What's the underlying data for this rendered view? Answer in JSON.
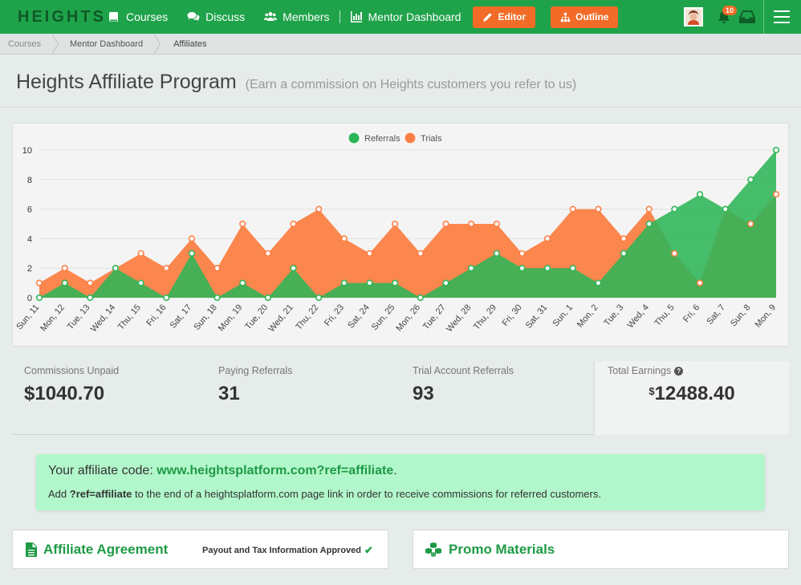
{
  "nav": {
    "brand": "HEIGHTS",
    "items": [
      {
        "label": "Courses",
        "icon": "book-icon"
      },
      {
        "label": "Discuss",
        "icon": "chat-bubbles-icon"
      },
      {
        "label": "Members",
        "icon": "users-icon"
      },
      {
        "label": "Mentor Dashboard",
        "icon": "bar-chart-icon"
      }
    ],
    "editor_label": "Editor",
    "outline_label": "Outline",
    "notification_count": "10"
  },
  "breadcrumb": [
    "Courses",
    "Mentor Dashboard",
    "Affiliates"
  ],
  "page": {
    "title": "Heights Affiliate Program",
    "subtitle": "(Earn a commission on Heights customers you refer to us)"
  },
  "chart_data": {
    "type": "area",
    "categories": [
      "Sun, 11",
      "Mon, 12",
      "Tue, 13",
      "Wed, 14",
      "Thu, 15",
      "Fri, 16",
      "Sat, 17",
      "Sun, 18",
      "Mon, 19",
      "Tue, 20",
      "Wed, 21",
      "Thu, 22",
      "Fri, 23",
      "Sat, 24",
      "Sun, 25",
      "Mon, 26",
      "Tue, 27",
      "Wed, 28",
      "Thu, 29",
      "Fri, 30",
      "Sat, 31",
      "Sun, 1",
      "Mon, 2",
      "Tue, 3",
      "Wed, 4",
      "Thu, 5",
      "Fri, 6",
      "Sat, 7",
      "Sun, 8",
      "Mon, 9"
    ],
    "series": [
      {
        "name": "Referrals",
        "color": "#2db557",
        "values": [
          0,
          1,
          0,
          2,
          1,
          0,
          3,
          0,
          1,
          0,
          2,
          0,
          1,
          1,
          1,
          0,
          1,
          2,
          3,
          2,
          2,
          2,
          1,
          3,
          5,
          6,
          7,
          6,
          8,
          10
        ]
      },
      {
        "name": "Trials",
        "color": "#fb7f45",
        "values": [
          1,
          2,
          1,
          2,
          3,
          2,
          4,
          2,
          5,
          3,
          5,
          6,
          4,
          3,
          5,
          3,
          5,
          5,
          5,
          3,
          4,
          6,
          6,
          4,
          6,
          3,
          1,
          6,
          5,
          7
        ]
      }
    ],
    "y_ticks": [
      0,
      2,
      4,
      6,
      8,
      10
    ],
    "ylim": [
      0,
      10
    ],
    "legend": "top-center",
    "grid": true
  },
  "stats": {
    "commissions_unpaid": {
      "label": "Commissions Unpaid",
      "value": "$1040.70"
    },
    "paying_referrals": {
      "label": "Paying Referrals",
      "value": "31"
    },
    "trial_referrals": {
      "label": "Trial Account Referrals",
      "value": "93"
    },
    "total_earnings": {
      "label": "Total Earnings",
      "currency": "$",
      "value": "12488.40"
    }
  },
  "affiliate": {
    "code_prefix": "Your affiliate code: ",
    "code_url": "www.heightsplatform.com?ref=affiliate",
    "code_suffix": ".",
    "desc_prefix": "Add ",
    "desc_param": "?ref=affiliate",
    "desc_suffix": " to the end of a heightsplatform.com page link in order to receive commissions for referred customers."
  },
  "cards": {
    "agreement_title": "Affiliate Agreement",
    "agreement_status": "Payout and Tax Information Approved",
    "promo_title": "Promo Materials"
  }
}
